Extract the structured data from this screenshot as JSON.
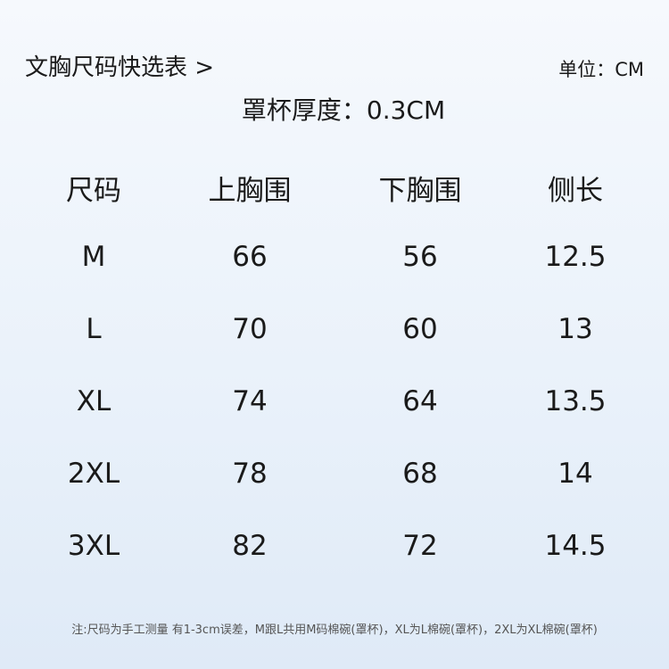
{
  "header": {
    "title": "文胸尺码快选表 >",
    "unit": "单位：CM",
    "subtitle": "罩杯厚度：0.3CM"
  },
  "table": {
    "columns": [
      "尺码",
      "上胸围",
      "下胸围",
      "侧长"
    ],
    "rows": [
      [
        "M",
        "66",
        "56",
        "12.5"
      ],
      [
        "L",
        "70",
        "60",
        "13"
      ],
      [
        "XL",
        "74",
        "64",
        "13.5"
      ],
      [
        "2XL",
        "78",
        "68",
        "14"
      ],
      [
        "3XL",
        "82",
        "72",
        "14.5"
      ]
    ]
  },
  "footer": {
    "note": "注:尺码为手工测量 有1-3cm误差，M跟L共用M码棉碗(罩杯)，XL为L棉碗(罩杯)，2XL为XL棉碗(罩杯)"
  }
}
